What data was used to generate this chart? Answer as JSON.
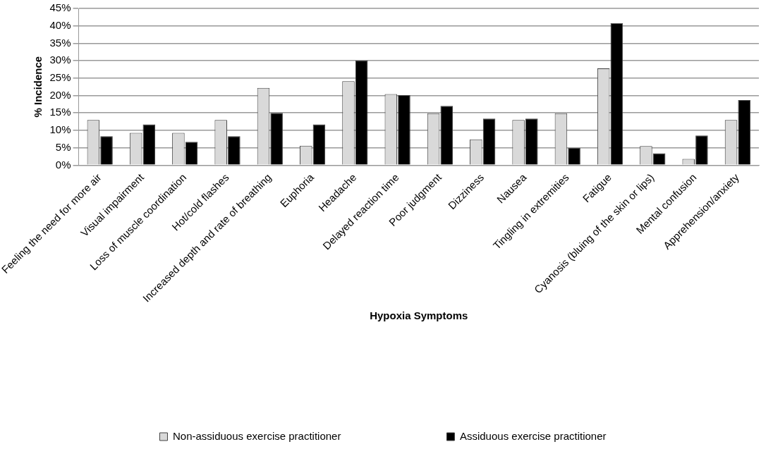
{
  "chart_data": {
    "type": "bar",
    "xlabel": "Hypoxia Symptoms",
    "ylabel": "% Incidence",
    "categories": [
      "Feeling the need for more air",
      "Visual impairment",
      "Loss of muscle coordination",
      "Hot/cold flashes",
      "Increased depth and rate of breathing",
      "Euphoria",
      "Headache",
      "Delayed reaction time",
      "Poor judgment",
      "Dizziness",
      "Nausea",
      "Tingling in extremities",
      "Fatigue",
      "Cyanosis (bluing of the skin or lips)",
      "Mental confusion",
      "Apprehension/anxiety"
    ],
    "series": [
      {
        "name": "Non-assiduous exercise practitioner",
        "color": "#d9d9d9",
        "values": [
          13.0,
          9.3,
          9.3,
          13.0,
          22.2,
          5.6,
          24.1,
          20.4,
          14.9,
          7.4,
          13.0,
          14.9,
          27.8,
          5.5,
          1.8,
          13.0
        ]
      },
      {
        "name": "Assiduous exercise practitioner",
        "color": "#000000",
        "values": [
          8.3,
          11.7,
          6.7,
          8.3,
          15.0,
          11.7,
          30.1,
          20.1,
          17.0,
          13.4,
          13.4,
          5.0,
          40.8,
          3.4,
          8.5,
          18.7
        ]
      }
    ],
    "ylim": [
      0,
      45
    ],
    "yticks": [
      {
        "value": 0,
        "label": "0%"
      },
      {
        "value": 5,
        "label": "5%"
      },
      {
        "value": 10,
        "label": "10%"
      },
      {
        "value": 15,
        "label": "15%"
      },
      {
        "value": 20,
        "label": "20%"
      },
      {
        "value": 25,
        "label": "25%"
      },
      {
        "value": 30,
        "label": "30%"
      },
      {
        "value": 35,
        "label": "35%"
      },
      {
        "value": 40,
        "label": "40%"
      },
      {
        "value": 45,
        "label": "45%"
      }
    ],
    "grid": "y",
    "legend": "bottom"
  }
}
